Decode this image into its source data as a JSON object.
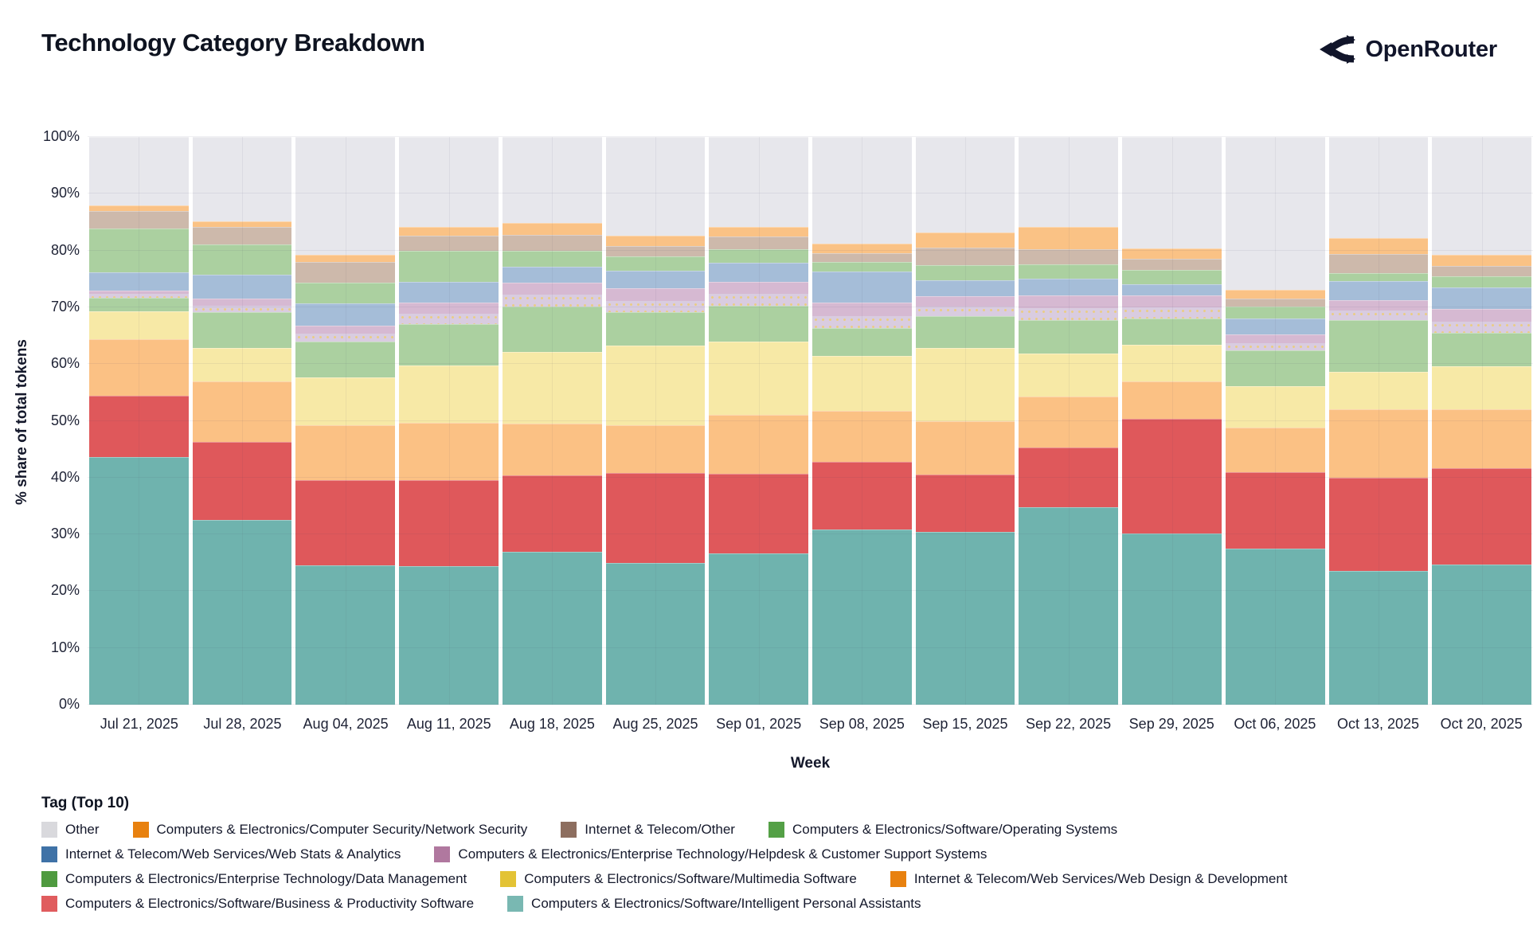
{
  "header": {
    "title": "Technology Category Breakdown",
    "brand": "OpenRouter"
  },
  "chart_data": {
    "type": "bar",
    "stacked": true,
    "title": "Technology Category Breakdown",
    "xlabel": "Week",
    "ylabel": "% share of total tokens",
    "ylim": [
      0,
      100
    ],
    "ytick_step": 10,
    "ytick_suffix": "%",
    "grid": true,
    "legend_position": "bottom",
    "categories": [
      "Jul 21, 2025",
      "Jul 28, 2025",
      "Aug 04, 2025",
      "Aug 11, 2025",
      "Aug 18, 2025",
      "Aug 25, 2025",
      "Sep 01, 2025",
      "Sep 08, 2025",
      "Sep 15, 2025",
      "Sep 22, 2025",
      "Sep 29, 2025",
      "Oct 06, 2025",
      "Oct 13, 2025",
      "Oct 20, 2025"
    ],
    "series": [
      {
        "key": "ipa",
        "name": "Computers & Electronics/Software/Intelligent Personal Assistants",
        "swatch_color": "#79b8b2",
        "bar_color": "#6fb3ae",
        "pattern": "none",
        "values": [
          43.6,
          32.6,
          24.5,
          24.4,
          27.0,
          25.0,
          26.6,
          30.8,
          30.5,
          34.8,
          30.2,
          27.5,
          23.6,
          24.7
        ]
      },
      {
        "key": "bp",
        "name": "Computers & Electronics/Software/Business & Productivity Software",
        "swatch_color": "#e05c5e",
        "bar_color": "#df585b",
        "pattern": "none",
        "values": [
          10.8,
          13.7,
          15.0,
          15.2,
          13.4,
          15.8,
          14.1,
          12.0,
          10.1,
          10.5,
          20.2,
          13.5,
          16.4,
          16.9
        ]
      },
      {
        "key": "webdesign",
        "name": "Internet & Telecom/Web Services/Web Design & Development",
        "swatch_color": "#e8810f",
        "bar_color": "#fbc184",
        "pattern": "none",
        "values": [
          10.0,
          10.6,
          9.7,
          10.1,
          9.1,
          8.5,
          10.3,
          8.9,
          9.4,
          9.0,
          6.6,
          7.8,
          12.0,
          10.4
        ]
      },
      {
        "key": "multimedia",
        "name": "Computers & Electronics/Software/Multimedia Software",
        "swatch_color": "#e3c335",
        "bar_color": "#f7e9a6",
        "pattern": "none",
        "values": [
          4.9,
          5.9,
          8.5,
          10.0,
          12.6,
          14.0,
          13.0,
          9.8,
          12.8,
          7.6,
          6.4,
          7.3,
          6.7,
          7.6
        ]
      },
      {
        "key": "datamgmt",
        "name": "Computers & Electronics/Enterprise Technology/Data Management",
        "swatch_color": "#4f9a3f",
        "bar_color": "#abd0a0",
        "pattern": "none",
        "values": [
          2.4,
          6.3,
          6.3,
          7.3,
          8.1,
          5.9,
          6.3,
          4.8,
          5.6,
          5.8,
          4.6,
          6.3,
          9.1,
          5.9
        ]
      },
      {
        "key": "helpdesk",
        "name": "Computers & Electronics/Enterprise Technology/Helpdesk & Customer Support Systems",
        "swatch_color": "#b0789f",
        "bar_color": "#d6b9d2",
        "pattern": "dots-bottom",
        "values": [
          1.3,
          2.5,
          2.8,
          3.9,
          4.2,
          4.1,
          4.2,
          4.5,
          3.5,
          4.4,
          4.1,
          2.8,
          3.5,
          4.2
        ]
      },
      {
        "key": "webstats",
        "name": "Internet & Telecom/Web Services/Web Stats & Analytics",
        "swatch_color": "#3f72a7",
        "bar_color": "#a5bdd8",
        "pattern": "none",
        "values": [
          3.1,
          4.1,
          3.9,
          3.6,
          2.8,
          3.1,
          3.3,
          5.5,
          2.8,
          2.9,
          1.9,
          2.8,
          3.3,
          3.8
        ]
      },
      {
        "key": "os",
        "name": "Computers & Electronics/Software/Operating Systems",
        "swatch_color": "#54a046",
        "bar_color": "#abd0a0",
        "pattern": "none",
        "values": [
          7.8,
          5.4,
          3.6,
          5.4,
          2.7,
          2.6,
          2.5,
          1.7,
          2.8,
          2.6,
          2.6,
          2.1,
          1.4,
          1.9
        ]
      },
      {
        "key": "itother",
        "name": "Internet & Telecom/Other",
        "swatch_color": "#8d6e5f",
        "bar_color": "#cdb9ab",
        "pattern": "dots-faint",
        "values": [
          3.1,
          3.0,
          3.7,
          2.7,
          2.8,
          1.8,
          2.2,
          1.6,
          3.0,
          2.6,
          1.9,
          1.5,
          3.4,
          1.9
        ]
      },
      {
        "key": "netsec",
        "name": "Computers & Electronics/Computer Security/Network Security",
        "swatch_color": "#e8810f",
        "bar_color": "#fac285",
        "pattern": "none",
        "values": [
          1.0,
          1.0,
          1.3,
          1.5,
          2.2,
          1.8,
          1.6,
          1.6,
          2.7,
          3.9,
          1.9,
          1.5,
          2.8,
          1.9
        ]
      },
      {
        "key": "other",
        "name": "Other",
        "swatch_color": "#d9d9dd",
        "bar_color": "#e7e7ec",
        "pattern": "none",
        "values": [
          12.0,
          14.9,
          20.7,
          15.9,
          15.1,
          17.4,
          15.9,
          18.8,
          16.8,
          15.9,
          19.6,
          26.9,
          17.8,
          20.8
        ]
      }
    ]
  },
  "legend": {
    "title": "Tag (Top 10)",
    "rows": [
      [
        "other",
        "netsec",
        "itother",
        "os"
      ],
      [
        "webstats",
        "helpdesk"
      ],
      [
        "datamgmt",
        "multimedia",
        "webdesign"
      ],
      [
        "bp",
        "ipa"
      ]
    ]
  }
}
